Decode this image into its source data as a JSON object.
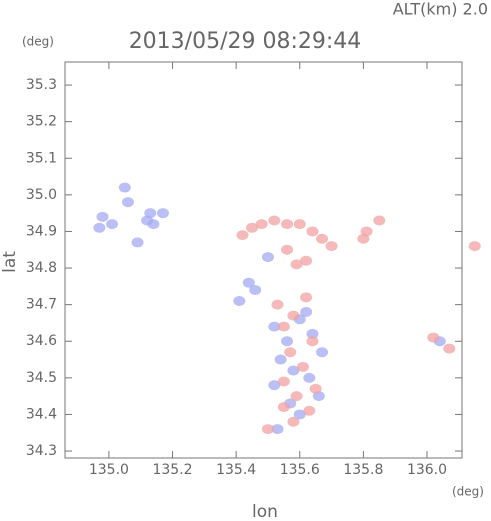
{
  "chart_data": {
    "type": "scatter",
    "title": "2013/05/29 08:29:44",
    "subtitle": "ALT(km) 2.0",
    "y_unit": "(deg)",
    "x_unit": "(deg)",
    "xlabel": "lon",
    "ylabel": "lat",
    "xlim": [
      134.862,
      136.11
    ],
    "ylim": [
      34.281,
      35.363
    ],
    "xticks": [
      {
        "value": 135,
        "label": "135.0"
      },
      135.2,
      135.4,
      135.6,
      135.8,
      {
        "value": 136,
        "label": "136.0"
      }
    ],
    "yticks": [
      34.3,
      34.4,
      34.5,
      34.6,
      34.7,
      34.8,
      34.9,
      {
        "value": 35,
        "label": "35.0"
      },
      35.1,
      35.2,
      35.3
    ],
    "series": [
      {
        "color": "#a3aaf2",
        "x": [
          134.98,
          134.97,
          135.01,
          135.05,
          135.06,
          135.13,
          135.14,
          135.12,
          135.17,
          135.09,
          135.44,
          135.46,
          135.41,
          135.52,
          135.56,
          135.6,
          135.54,
          135.58,
          135.63,
          135.52,
          135.57,
          135.66,
          135.6,
          135.53,
          135.62,
          135.5,
          135.67,
          135.64,
          136.04
        ],
        "values": [
          34.94,
          34.91,
          34.92,
          35.02,
          34.98,
          34.95,
          34.92,
          34.93,
          34.95,
          34.87,
          34.76,
          34.74,
          34.71,
          34.64,
          34.6,
          34.66,
          34.55,
          34.52,
          34.5,
          34.48,
          34.43,
          34.45,
          34.4,
          34.36,
          34.68,
          34.83,
          34.57,
          34.62,
          34.6
        ]
      },
      {
        "color": "#f2a2a2",
        "x": [
          135.42,
          135.45,
          135.48,
          135.52,
          135.56,
          135.6,
          135.64,
          135.67,
          135.7,
          135.8,
          135.81,
          135.85,
          136.15,
          135.56,
          135.59,
          135.53,
          135.58,
          135.62,
          135.55,
          135.64,
          135.57,
          135.61,
          135.55,
          135.65,
          135.59,
          135.55,
          135.63,
          135.58,
          135.5,
          136.07,
          136.02,
          135.62
        ],
        "values": [
          34.89,
          34.91,
          34.92,
          34.93,
          34.92,
          34.92,
          34.9,
          34.88,
          34.86,
          34.88,
          34.9,
          34.93,
          34.86,
          34.85,
          34.81,
          34.7,
          34.67,
          34.72,
          34.64,
          34.6,
          34.57,
          34.53,
          34.49,
          34.47,
          34.45,
          34.42,
          34.41,
          34.38,
          34.36,
          34.58,
          34.61,
          34.82
        ]
      }
    ]
  }
}
